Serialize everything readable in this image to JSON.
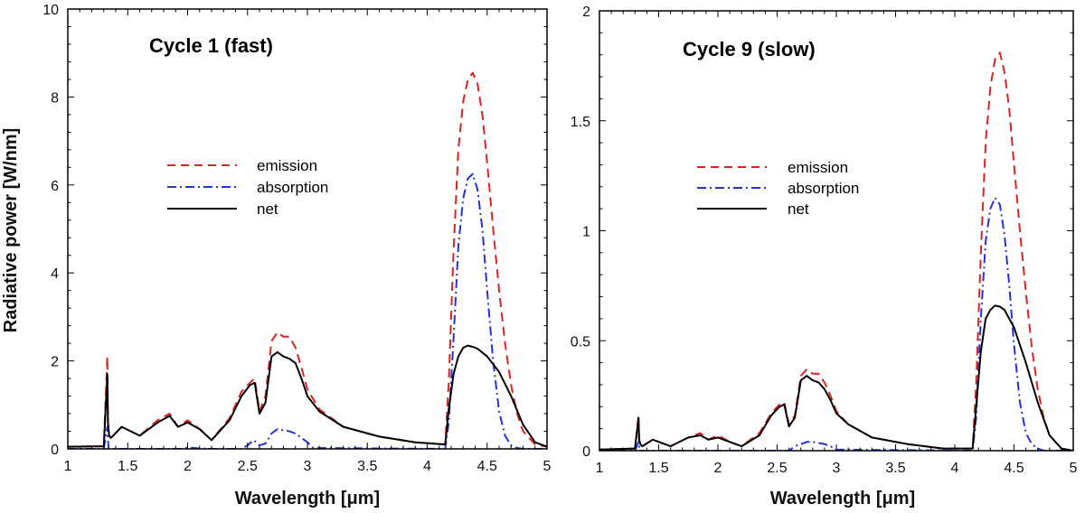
{
  "chart_data": [
    {
      "type": "line",
      "title": "Cycle 1 (fast)",
      "xlabel": "Wavelength [μm]",
      "ylabel": "Radiative power [W/nm]",
      "xlim": [
        1,
        5
      ],
      "ylim": [
        0,
        10
      ],
      "xticks": [
        1,
        1.5,
        2,
        2.5,
        3,
        3.5,
        4,
        4.5,
        5
      ],
      "xtick_labels": [
        "1",
        "1.5",
        "2",
        "2.5",
        "3",
        "3.5",
        "4",
        "4.5",
        "5"
      ],
      "yticks": [
        0,
        2,
        4,
        6,
        8,
        10
      ],
      "ytick_labels": [
        "0",
        "2",
        "4",
        "6",
        "8",
        "10"
      ],
      "legend": [
        "emission",
        "absorption",
        "net"
      ],
      "series": [
        {
          "name": "emission",
          "color": "#dd2222",
          "style": "dashed",
          "x": [
            1.0,
            1.3,
            1.33,
            1.335,
            1.345,
            1.36,
            1.45,
            1.6,
            1.75,
            1.85,
            1.92,
            2.0,
            2.1,
            2.2,
            2.35,
            2.45,
            2.52,
            2.56,
            2.6,
            2.65,
            2.7,
            2.75,
            2.8,
            2.85,
            2.9,
            2.95,
            3.0,
            3.1,
            3.3,
            3.6,
            3.9,
            4.15,
            4.18,
            4.22,
            4.26,
            4.3,
            4.34,
            4.38,
            4.42,
            4.46,
            4.5,
            4.55,
            4.6,
            4.65,
            4.7,
            4.75,
            4.8,
            4.9,
            5.0
          ],
          "y": [
            0.05,
            0.06,
            2.1,
            0.6,
            0.3,
            0.25,
            0.5,
            0.3,
            0.65,
            0.8,
            0.5,
            0.65,
            0.45,
            0.2,
            0.7,
            1.3,
            1.5,
            1.6,
            0.85,
            1.2,
            2.45,
            2.65,
            2.55,
            2.55,
            2.3,
            1.85,
            1.35,
            0.9,
            0.5,
            0.28,
            0.15,
            0.1,
            1.5,
            4.5,
            6.8,
            7.9,
            8.4,
            8.55,
            8.3,
            7.6,
            6.5,
            5.0,
            3.6,
            2.4,
            1.45,
            0.8,
            0.4,
            0.1,
            0.05
          ]
        },
        {
          "name": "absorption",
          "color": "#2233dd",
          "style": "dashdot",
          "x": [
            1.0,
            1.3,
            1.33,
            1.34,
            1.4,
            1.95,
            2.0,
            2.1,
            2.2,
            2.45,
            2.5,
            2.55,
            2.6,
            2.65,
            2.7,
            2.75,
            2.8,
            2.85,
            2.9,
            2.95,
            3.0,
            3.05,
            4.15,
            4.18,
            4.22,
            4.26,
            4.3,
            4.34,
            4.38,
            4.42,
            4.46,
            4.5,
            4.55,
            4.6,
            4.65,
            4.7,
            4.75,
            4.8,
            5.0
          ],
          "y": [
            0.0,
            0.0,
            0.5,
            0.0,
            0.0,
            0.0,
            0.03,
            0.01,
            0.0,
            0.0,
            0.08,
            0.2,
            0.08,
            0.12,
            0.35,
            0.45,
            0.42,
            0.4,
            0.35,
            0.25,
            0.15,
            0.02,
            0.0,
            0.6,
            2.5,
            4.6,
            5.7,
            6.15,
            6.25,
            5.9,
            5.0,
            3.6,
            2.0,
            0.85,
            0.3,
            0.08,
            0.02,
            0.0,
            0.0
          ]
        },
        {
          "name": "net",
          "color": "#000000",
          "style": "solid",
          "x": [
            1.0,
            1.3,
            1.33,
            1.335,
            1.345,
            1.36,
            1.45,
            1.6,
            1.75,
            1.85,
            1.92,
            2.0,
            2.1,
            2.2,
            2.35,
            2.45,
            2.52,
            2.56,
            2.6,
            2.65,
            2.7,
            2.75,
            2.8,
            2.85,
            2.9,
            2.95,
            3.0,
            3.1,
            3.3,
            3.6,
            3.9,
            4.15,
            4.18,
            4.22,
            4.26,
            4.3,
            4.34,
            4.38,
            4.42,
            4.5,
            4.6,
            4.7,
            4.8,
            4.9,
            5.0
          ],
          "y": [
            0.05,
            0.06,
            1.7,
            0.6,
            0.3,
            0.25,
            0.5,
            0.3,
            0.6,
            0.75,
            0.5,
            0.6,
            0.45,
            0.2,
            0.65,
            1.2,
            1.45,
            1.5,
            0.8,
            1.05,
            2.1,
            2.2,
            2.1,
            2.05,
            1.95,
            1.6,
            1.2,
            0.85,
            0.5,
            0.28,
            0.15,
            0.1,
            0.9,
            1.7,
            2.1,
            2.3,
            2.35,
            2.32,
            2.28,
            2.1,
            1.75,
            1.2,
            0.55,
            0.15,
            0.05
          ]
        }
      ]
    },
    {
      "type": "line",
      "title": "Cycle 9 (slow)",
      "xlabel": "Wavelength [μm]",
      "ylabel": "",
      "xlim": [
        1,
        5
      ],
      "ylim": [
        0,
        2
      ],
      "xticks": [
        1,
        1.5,
        2,
        2.5,
        3,
        3.5,
        4,
        4.5,
        5
      ],
      "xtick_labels": [
        "1",
        "1.5",
        "2",
        "2.5",
        "3",
        "3.5",
        "4",
        "4.5",
        "5"
      ],
      "yticks": [
        0,
        0.5,
        1,
        1.5,
        2
      ],
      "ytick_labels": [
        "0",
        "0.5",
        "1",
        "1.5",
        "2"
      ],
      "legend": [
        "emission",
        "absorption",
        "net"
      ],
      "series": [
        {
          "name": "emission",
          "color": "#dd2222",
          "style": "dashed",
          "x": [
            1.0,
            1.3,
            1.33,
            1.335,
            1.345,
            1.36,
            1.45,
            1.6,
            1.75,
            1.85,
            1.92,
            2.0,
            2.1,
            2.2,
            2.35,
            2.45,
            2.52,
            2.56,
            2.6,
            2.65,
            2.7,
            2.75,
            2.8,
            2.85,
            2.9,
            2.95,
            3.0,
            3.1,
            3.3,
            3.6,
            3.9,
            4.15,
            4.18,
            4.22,
            4.26,
            4.3,
            4.34,
            4.38,
            4.42,
            4.46,
            4.5,
            4.55,
            4.6,
            4.65,
            4.7,
            4.75,
            4.8,
            4.9,
            5.0
          ],
          "y": [
            0.005,
            0.01,
            0.16,
            0.05,
            0.03,
            0.02,
            0.05,
            0.02,
            0.06,
            0.08,
            0.05,
            0.07,
            0.04,
            0.02,
            0.08,
            0.17,
            0.21,
            0.22,
            0.12,
            0.16,
            0.34,
            0.37,
            0.35,
            0.35,
            0.31,
            0.25,
            0.18,
            0.12,
            0.06,
            0.03,
            0.01,
            0.01,
            0.3,
            0.9,
            1.4,
            1.65,
            1.78,
            1.81,
            1.72,
            1.55,
            1.3,
            1.0,
            0.72,
            0.47,
            0.28,
            0.15,
            0.07,
            0.01,
            0.0
          ]
        },
        {
          "name": "absorption",
          "color": "#2233dd",
          "style": "dashdot",
          "x": [
            1.0,
            1.3,
            1.33,
            1.34,
            1.4,
            2.6,
            2.65,
            2.7,
            2.75,
            2.8,
            2.85,
            2.9,
            2.95,
            3.0,
            4.15,
            4.18,
            4.22,
            4.26,
            4.3,
            4.34,
            4.38,
            4.42,
            4.46,
            4.5,
            4.55,
            4.6,
            4.65,
            4.7,
            4.75,
            5.0
          ],
          "y": [
            0.0,
            0.0,
            0.04,
            0.0,
            0.0,
            0.0,
            0.02,
            0.03,
            0.04,
            0.04,
            0.035,
            0.03,
            0.02,
            0.005,
            0.0,
            0.15,
            0.6,
            0.95,
            1.1,
            1.15,
            1.12,
            0.98,
            0.75,
            0.48,
            0.22,
            0.08,
            0.03,
            0.01,
            0.0,
            0.0
          ]
        },
        {
          "name": "net",
          "color": "#000000",
          "style": "solid",
          "x": [
            1.0,
            1.3,
            1.33,
            1.335,
            1.345,
            1.36,
            1.45,
            1.6,
            1.75,
            1.85,
            1.92,
            2.0,
            2.1,
            2.2,
            2.35,
            2.45,
            2.52,
            2.56,
            2.6,
            2.65,
            2.7,
            2.75,
            2.8,
            2.85,
            2.9,
            2.95,
            3.0,
            3.1,
            3.3,
            3.6,
            3.9,
            4.15,
            4.18,
            4.22,
            4.26,
            4.3,
            4.34,
            4.38,
            4.42,
            4.5,
            4.6,
            4.7,
            4.8,
            4.9,
            5.0
          ],
          "y": [
            0.005,
            0.01,
            0.15,
            0.05,
            0.03,
            0.02,
            0.05,
            0.02,
            0.06,
            0.07,
            0.05,
            0.06,
            0.04,
            0.02,
            0.07,
            0.16,
            0.2,
            0.21,
            0.11,
            0.15,
            0.32,
            0.34,
            0.32,
            0.31,
            0.28,
            0.23,
            0.17,
            0.12,
            0.06,
            0.03,
            0.01,
            0.01,
            0.2,
            0.45,
            0.6,
            0.64,
            0.66,
            0.655,
            0.64,
            0.56,
            0.4,
            0.22,
            0.07,
            0.01,
            0.0
          ]
        }
      ]
    }
  ]
}
